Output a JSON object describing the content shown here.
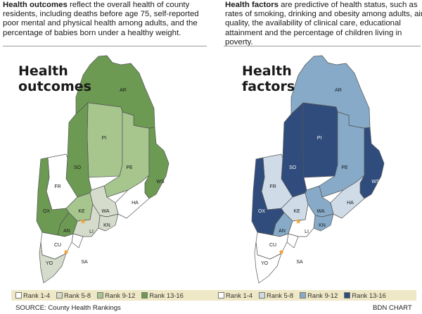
{
  "intro_left": {
    "lead": "Health outcomes",
    "body": " reflect the overall health of county residents, including deaths before age 75, self-reported poor mental and physical health among adults, and the percentage of babies born under a healthy weight."
  },
  "intro_right": {
    "lead": "Health factors",
    "body": " are predictive of health status, such as rates of smoking, drinking and obesity among adults, air quality, the availability of clinical care, educational attainment and the percentage of children living in poverty."
  },
  "maps": [
    {
      "title_line1": "Health",
      "title_line2": "outcomes",
      "colors": {
        "r1": "#ffffff",
        "r2": "#d5dccc",
        "r3": "#a6c68e",
        "r4": "#6c9a52"
      },
      "legend": [
        "Rank 1-4",
        "Rank 5-8",
        "Rank 9-12",
        "Rank 13-16"
      ],
      "counties": {
        "AR": "r4",
        "PI": "r3",
        "SO": "r4",
        "PE": "r3",
        "WS": "r4",
        "FR": "r1",
        "OX": "r4",
        "KE": "r3",
        "WA": "r2",
        "HA": "r1",
        "AN": "r4",
        "KN": "r2",
        "LI": "r2",
        "SA": "r1",
        "CU": "r1",
        "YO": "r2"
      }
    },
    {
      "title_line1": "Health",
      "title_line2": "factors",
      "colors": {
        "r1": "#ffffff",
        "r2": "#cfdce7",
        "r3": "#86aac8",
        "r4": "#2f4c7c"
      },
      "legend": [
        "Rank 1-4",
        "Rank 5-8",
        "Rank 9-12",
        "Rank 13-16"
      ],
      "counties": {
        "AR": "r3",
        "PI": "r4",
        "SO": "r4",
        "PE": "r3",
        "WS": "r4",
        "FR": "r2",
        "OX": "r4",
        "KE": "r2",
        "WA": "r3",
        "HA": "r2",
        "AN": "r3",
        "KN": "r3",
        "LI": "r1",
        "SA": "r1",
        "CU": "r1",
        "YO": "r1"
      }
    }
  ],
  "source": "SOURCE: County Health Rankings",
  "credit": "BDN CHART"
}
